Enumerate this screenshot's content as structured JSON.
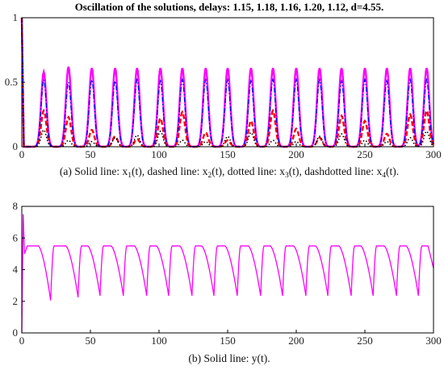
{
  "title": "Oscillation of the solutions, delays: 1.15, 1.18, 1.16, 1.20, 1.12, d=4.55.",
  "colors": {
    "x1": "#ff00ff",
    "x2": "#ff0000",
    "x3": "#000000",
    "x4": "#0000ff",
    "y": "#ff00ff"
  },
  "chart_data": [
    {
      "type": "line",
      "caption_parts": [
        "(a) Solid line: x",
        "1",
        "(t), dashed line: x",
        "2",
        "(t), dotted line: x",
        "3",
        "(t), dashdotted line: x",
        "4",
        "(t)."
      ],
      "xlim": [
        0,
        300
      ],
      "ylim": [
        0,
        1
      ],
      "xticks": [
        "0",
        "50",
        "100",
        "150",
        "200",
        "250",
        "300"
      ],
      "yticks": [
        "0",
        "0.5",
        "1"
      ],
      "peak_times": [
        16,
        34,
        51,
        68,
        84,
        101,
        117,
        134,
        150,
        167,
        183,
        200,
        217,
        233,
        250,
        266,
        283,
        295
      ],
      "series": [
        {
          "name": "x1(t)",
          "style": "solid",
          "peaks": [
            0.58,
            0.62,
            0.61,
            0.61,
            0.61,
            0.61,
            0.61,
            0.61,
            0.61,
            0.61,
            0.61,
            0.61,
            0.61,
            0.61,
            0.61,
            0.61,
            0.61,
            0.61
          ]
        },
        {
          "name": "x2(t)",
          "style": "dashed",
          "peaks": [
            0.28,
            0.23,
            0.13,
            0.08,
            0.06,
            0.22,
            0.27,
            0.11,
            0.05,
            0.2,
            0.28,
            0.14,
            0.07,
            0.24,
            0.2,
            0.1,
            0.25,
            0.28
          ]
        },
        {
          "name": "x3(t)",
          "style": "dotted",
          "peaks": [
            0.13,
            0.05,
            0.04,
            0.07,
            0.09,
            0.12,
            0.05,
            0.04,
            0.08,
            0.11,
            0.05,
            0.04,
            0.08,
            0.1,
            0.05,
            0.04,
            0.07,
            0.12
          ]
        },
        {
          "name": "x4(t)",
          "style": "dashdot",
          "peaks": [
            0.52,
            0.5,
            0.52,
            0.51,
            0.52,
            0.51,
            0.52,
            0.52,
            0.52,
            0.51,
            0.52,
            0.52,
            0.52,
            0.51,
            0.52,
            0.51,
            0.52,
            0.52
          ]
        }
      ]
    },
    {
      "type": "line",
      "caption": "(b) Solid line: y(t).",
      "xlim": [
        0,
        300
      ],
      "ylim": [
        0,
        8
      ],
      "xticks": [
        "0",
        "50",
        "100",
        "150",
        "200",
        "250",
        "300"
      ],
      "yticks": [
        "0",
        "2",
        "4",
        "6",
        "8"
      ],
      "series": [
        {
          "name": "y(t)",
          "style": "solid",
          "initial_peak": 7.5,
          "plateau": 5.5,
          "dip_times": [
            21,
            41,
            57,
            74,
            91,
            107,
            124,
            140,
            157,
            174,
            190,
            207,
            223,
            240,
            256,
            273,
            289
          ],
          "dip_values": [
            2.05,
            2.25,
            2.35,
            2.35,
            2.35,
            2.35,
            2.35,
            2.35,
            2.35,
            2.35,
            2.35,
            2.35,
            2.35,
            2.35,
            2.35,
            2.35,
            2.35
          ],
          "end_value": 4.1
        }
      ]
    }
  ]
}
